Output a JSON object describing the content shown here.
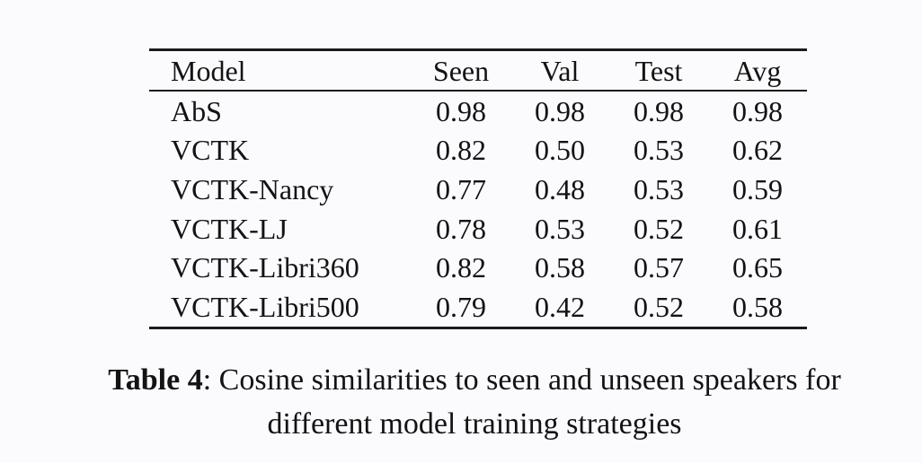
{
  "page": {
    "background_color": "#fbfafd",
    "text_color": "#131313",
    "rule_color": "#1b1b1b"
  },
  "table": {
    "columns": [
      "Model",
      "Seen",
      "Val",
      "Test",
      "Avg"
    ],
    "rows": [
      {
        "model": "AbS",
        "cells": [
          "0.98",
          "0.98",
          "0.98",
          "0.98"
        ]
      },
      {
        "model": "VCTK",
        "cells": [
          "0.82",
          "0.50",
          "0.53",
          "0.62"
        ]
      },
      {
        "model": "VCTK-Nancy",
        "cells": [
          "0.77",
          "0.48",
          "0.53",
          "0.59"
        ]
      },
      {
        "model": "VCTK-LJ",
        "cells": [
          "0.78",
          "0.53",
          "0.52",
          "0.61"
        ]
      },
      {
        "model": "VCTK-Libri360",
        "cells": [
          "0.82",
          "0.58",
          "0.57",
          "0.65"
        ]
      },
      {
        "model": "VCTK-Libri500",
        "cells": [
          "0.79",
          "0.42",
          "0.52",
          "0.58"
        ]
      }
    ]
  },
  "caption": {
    "label": "Table 4",
    "line1_rest": ": Cosine similarities to seen and unseen speakers for",
    "line2": "different model training strategies"
  }
}
